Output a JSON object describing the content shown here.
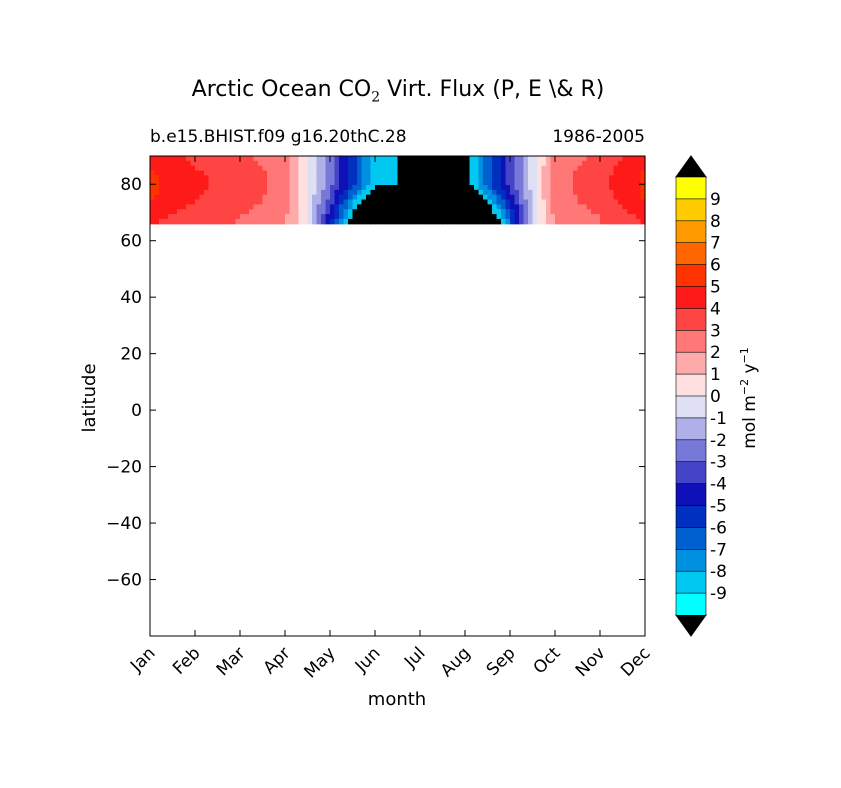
{
  "chart_data": {
    "type": "heatmap",
    "title_main": "Arctic Ocean CO",
    "title_sub": "2",
    "title_rest": " Virt. Flux (P, E \\& R)",
    "subtitle_left": "b.e15.BHIST.f09 g16.20thC.28",
    "subtitle_right": "1986-2005",
    "xlabel": "month",
    "ylabel": "latitude",
    "x_ticks": [
      "Jan",
      "Feb",
      "Mar",
      "Apr",
      "May",
      "Jun",
      "Jul",
      "Aug",
      "Sep",
      "Oct",
      "Nov",
      "Dec"
    ],
    "ylim": [
      -80,
      90
    ],
    "y_ticks": [
      80,
      60,
      40,
      20,
      0,
      -20,
      -40,
      -60
    ],
    "y_tick_labels": [
      "80",
      "60",
      "40",
      "20",
      "0",
      "−20",
      "−40",
      "−60"
    ],
    "data_lat_range": [
      66,
      90
    ],
    "colorbar": {
      "label_main": "mol m",
      "label_sup1": "−2",
      "label_mid": " y",
      "label_sup2": "−1",
      "levels": [
        "9",
        "8",
        "7",
        "6",
        "5",
        "4",
        "3",
        "2",
        "1",
        "0",
        "-1",
        "-2",
        "-3",
        "-4",
        "-5",
        "-6",
        "-7",
        "-8",
        "-9"
      ],
      "colors_top_to_bottom": [
        "#ffff00",
        "#ffcc00",
        "#ff9900",
        "#ff6600",
        "#ff3300",
        "#ff1a1a",
        "#ff4444",
        "#ff7777",
        "#ffaaaa",
        "#ffe0e0",
        "#e0e0f4",
        "#b0b0e8",
        "#7878d8",
        "#4444c8",
        "#1010b8",
        "#0030c0",
        "#0060d0",
        "#0090e0",
        "#00c8f0",
        "#00ffff"
      ],
      "extend_color": "#000000"
    },
    "monthly_profile_lat70": {
      "months": [
        "Jan",
        "Feb",
        "Mar",
        "Apr",
        "May",
        "Jun",
        "Jul",
        "Aug",
        "Sep",
        "Oct",
        "Nov",
        "Dec"
      ],
      "values": [
        4.5,
        3.5,
        3,
        2,
        -3,
        -9,
        -10,
        -10,
        -4,
        2,
        3,
        4.5
      ]
    }
  }
}
